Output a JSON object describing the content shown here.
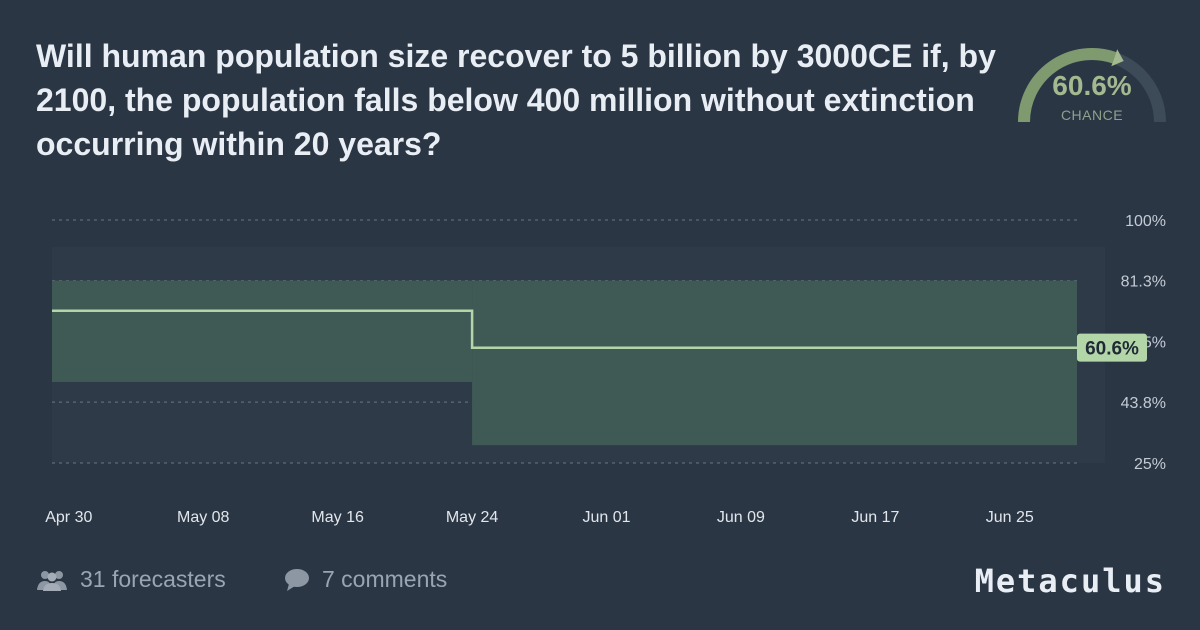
{
  "question": {
    "title": "Will human population size recover to 5 billion by 3000CE if, by 2100, the population falls below 400 million without extinction occurring within 20 years?"
  },
  "gauge": {
    "value_label": "60.6%",
    "value": 0.606,
    "caption": "CHANCE"
  },
  "colors": {
    "background": "#2b3645",
    "band": "#3f5a55",
    "line": "#b3d6a8",
    "label_bg": "#b3d6a8",
    "accent": "#a3b98f"
  },
  "chart_data": {
    "type": "line",
    "x_ticks": [
      "Apr 30",
      "May 08",
      "May 16",
      "May 24",
      "Jun 01",
      "Jun 09",
      "Jun 17",
      "Jun 25"
    ],
    "y_ticks": [
      "100%",
      "81.3%",
      "62.5%",
      "43.8%",
      "25%"
    ],
    "y_tick_values": [
      100,
      81.3,
      62.5,
      43.8,
      25
    ],
    "ylim": [
      25,
      100
    ],
    "xlim": [
      "Apr 29",
      "Jun 29"
    ],
    "grid": true,
    "series": [
      {
        "points": [
          {
            "x": "Apr 29",
            "y": 72
          },
          {
            "x": "May 24",
            "y": 72
          },
          {
            "x": "May 24",
            "y": 60.6
          },
          {
            "x": "Jun 29",
            "y": 60.6
          }
        ],
        "interval": [
          {
            "x_start": "Apr 29",
            "x_end": "May 24",
            "lower": 50,
            "upper": 81.3
          },
          {
            "x_start": "May 24",
            "x_end": "Jun 29",
            "lower": 30.5,
            "upper": 81.3
          }
        ]
      }
    ],
    "current_label": "60.6%"
  },
  "footer": {
    "forecasters": "31 forecasters",
    "comments": "7 comments",
    "brand": "Metaculus"
  }
}
